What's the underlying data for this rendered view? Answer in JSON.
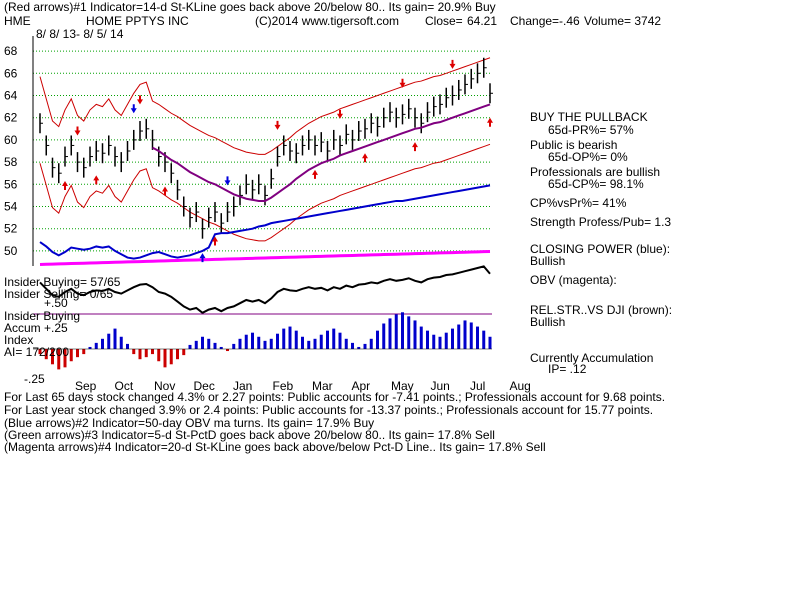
{
  "header": {
    "line1": "(Red arrows)#1 Indicator=14-d St-KLine goes back above 20/below 80.. Its gain= 20.9% Buy",
    "ticker": "HME",
    "company": "HOME PPTYS INC",
    "copyright": "(C)2014 www.tigersoft.com",
    "close_label": "Close=",
    "close_value": "64.21",
    "change": "Change=-.46",
    "volume": "Volume= 3742",
    "date_range": "8/ 8/ 13- 8/ 5/ 14"
  },
  "right_panel": {
    "buy_pullback": "BUY THE PULLBACK",
    "pr": "65d-PR%= 57%",
    "public": "Public is bearish",
    "op": "65d-OP%= 0%",
    "professionals": "Professionals are bullish",
    "cp": "65d-CP%= 98.1%",
    "cpvspr": "CP%vsPr%= 41%",
    "strength": "Strength Profess/Pub= 1.3",
    "closing_power": "CLOSING POWER (blue):",
    "closing_power_state": "Bullish",
    "obv": "OBV (magenta):",
    "relstr": "REL.STR..VS DJI (brown):",
    "relstr_state": "Bullish",
    "accumulation": "Currently Accumulation",
    "ip": "IP= .12"
  },
  "left_panel": {
    "insider_buying_1": "Insider Buying= 57/65",
    "insider_selling": "Insider Selling= 0/65",
    "plus50": "+.50",
    "insider_buying_2": "Insider Buying",
    "accum": "Accum",
    "plus25": "+.25",
    "index": "Index",
    "ai": "AI= 172/200",
    "minus25": "-.25"
  },
  "footer": {
    "line1": "For Last 65 days stock changed 4.3% or 2.27 points: Public accounts for -7.41 points.; Professionals account for 9.68 points.",
    "line2": "For Last year stock changed 3.9% or 2.4 points: Public accounts for -13.37 points.; Professionals account for 15.77 points.",
    "line3": "(Blue arrows)#2 Indicator=50-day OBV ma turns. Its gain= 17.9% Buy",
    "line4": "(Green arrows)#3 Indicator=5-d St-PctD goes back above 20/below 80.. Its gain= 17.8% Sell",
    "line5": "(Magenta arrows)#4 Indicator=20-d St-KLine goes back above/below Pct-D Line.. Its gain= 17.8% Sell"
  },
  "colors": {
    "price": "#000000",
    "bands": "#cc0000",
    "ma": "#800080",
    "closing_power": "#0000cc",
    "obv": "#ff00ff",
    "relstr": "#000000",
    "accum_pos": "#0000cc",
    "accum_neg": "#cc0000",
    "grid": "#00a000",
    "arrow_red": "#dd0000",
    "arrow_blue": "#0000dd"
  },
  "chart_data": {
    "type": "line",
    "y_ticks": [
      "68",
      "66",
      "64",
      "62",
      "60",
      "58",
      "56",
      "54",
      "52",
      "50"
    ],
    "y_range": [
      49,
      69
    ],
    "x_tick_labels": [
      "Sep",
      "Oct",
      "Nov",
      "Dec",
      "Jan",
      "Feb",
      "Mar",
      "Apr",
      "May",
      "Jun",
      "Jul",
      "Aug"
    ],
    "grid": true,
    "series": [
      {
        "key": "close",
        "values": [
          61.5,
          59.5,
          57.5,
          57.0,
          58.5,
          59.5,
          58.0,
          57.5,
          58.5,
          59.0,
          58.8,
          59.5,
          58.5,
          58.0,
          59.0,
          60.0,
          60.8,
          61.0,
          60.0,
          58.5,
          58.0,
          57.0,
          55.5,
          54.0,
          53.0,
          53.5,
          52.0,
          53.0,
          53.5,
          52.5,
          53.5,
          54.0,
          55.0,
          56.0,
          55.5,
          56.0,
          55.0,
          56.5,
          58.5,
          59.5,
          59.0,
          58.8,
          59.5,
          60.0,
          59.5,
          59.8,
          59.0,
          60.0,
          59.5,
          60.5,
          60.0,
          60.8,
          61.0,
          61.5,
          61.2,
          62.0,
          62.5,
          62.0,
          62.3,
          62.8,
          62.0,
          61.5,
          62.5,
          63.0,
          63.2,
          63.8,
          64.0,
          64.5,
          65.0,
          65.5,
          66.0,
          66.5,
          64.2
        ]
      },
      {
        "key": "moving_average",
        "values": [
          null,
          null,
          null,
          null,
          null,
          null,
          null,
          null,
          null,
          null,
          null,
          null,
          null,
          null,
          null,
          null,
          null,
          null,
          59.3,
          59.0,
          58.6,
          58.2,
          57.9,
          57.5,
          57.1,
          56.8,
          56.5,
          56.2,
          56.0,
          55.7,
          55.4,
          55.1,
          54.9,
          54.7,
          54.6,
          54.5,
          54.5,
          54.8,
          55.2,
          55.6,
          56.0,
          56.5,
          56.9,
          57.3,
          57.6,
          57.9,
          58.1,
          58.3,
          58.6,
          58.8,
          59.0,
          59.2,
          59.4,
          59.6,
          59.8,
          60.0,
          60.2,
          60.4,
          60.6,
          60.8,
          61.0,
          61.1,
          61.3,
          61.5,
          61.6,
          61.8,
          62.0,
          62.2,
          62.4,
          62.6,
          62.8,
          63.0,
          63.2
        ]
      }
    ],
    "closing_power": [
      50.8,
      50.4,
      49.9,
      49.6,
      49.9,
      50.3,
      50.2,
      50.1,
      50.2,
      50.4,
      50.3,
      50.4,
      50.0,
      49.7,
      49.4,
      49.3,
      49.4,
      49.6,
      49.8,
      49.9,
      49.7,
      49.5,
      49.4,
      49.5,
      49.6,
      49.8,
      50.0,
      50.3,
      51.5,
      51.6,
      51.6,
      51.7,
      51.8,
      51.9,
      52.0,
      52.2,
      52.3,
      52.5,
      52.6,
      52.7,
      52.8,
      52.9,
      53.0,
      53.1,
      53.2,
      53.3,
      53.4,
      53.5,
      53.6,
      53.7,
      53.8,
      53.9,
      54.0,
      54.1,
      54.2,
      54.3,
      54.4,
      54.5,
      54.5,
      54.6,
      54.7,
      54.8,
      54.9,
      55.0,
      55.1,
      55.2,
      55.3,
      55.4,
      55.5,
      55.6,
      55.7,
      55.8,
      55.9
    ],
    "accumulation_index": [
      -0.05,
      -0.1,
      -0.15,
      -0.2,
      -0.18,
      -0.12,
      -0.08,
      -0.05,
      0.02,
      0.06,
      0.1,
      0.15,
      0.2,
      0.12,
      0.05,
      -0.05,
      -0.1,
      -0.08,
      -0.05,
      -0.12,
      -0.18,
      -0.15,
      -0.1,
      -0.06,
      0.04,
      0.08,
      0.12,
      0.1,
      0.06,
      0.02,
      -0.02,
      0.05,
      0.1,
      0.14,
      0.16,
      0.12,
      0.08,
      0.1,
      0.15,
      0.2,
      0.22,
      0.18,
      0.12,
      0.08,
      0.1,
      0.14,
      0.18,
      0.2,
      0.16,
      0.1,
      0.06,
      0.02,
      0.05,
      0.1,
      0.18,
      0.25,
      0.3,
      0.34,
      0.36,
      0.32,
      0.28,
      0.22,
      0.18,
      0.14,
      0.12,
      0.16,
      0.2,
      0.24,
      0.28,
      0.26,
      0.22,
      0.18,
      0.12
    ]
  }
}
